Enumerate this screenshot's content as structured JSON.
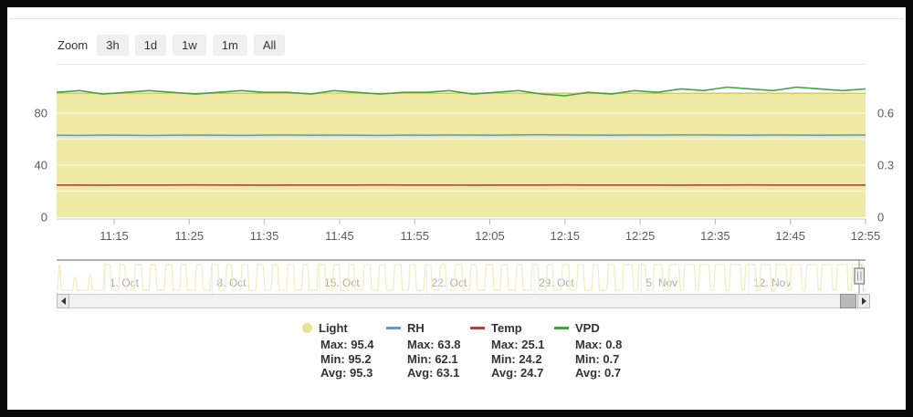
{
  "app": {
    "zoom_label": "Zoom",
    "zoom_buttons": [
      "3h",
      "1d",
      "1w",
      "1m",
      "All"
    ]
  },
  "colors": {
    "light_fill": "#eeeaa6",
    "light_edge": "#d6ca5f",
    "nav_light": "#e4d987",
    "rh": "#6899bb",
    "temp": "#aa4643",
    "vpd": "#44a244",
    "axis_text": "#5c5c5c",
    "grid_over_fill": "rgba(255,255,255,0.55)",
    "axis_line": "#c8c8c8"
  },
  "chart_data": {
    "type": "line",
    "main": {
      "x_tick_labels": [
        "11:15",
        "11:25",
        "11:35",
        "11:45",
        "11:55",
        "12:05",
        "12:15",
        "12:25",
        "12:35",
        "12:45",
        "12:55"
      ],
      "left_axis": {
        "tick_labels": [
          "0",
          "40",
          "80"
        ],
        "tick_values": [
          0,
          40,
          80
        ],
        "range": [
          0,
          118
        ]
      },
      "right_axis": {
        "tick_labels": [
          "0",
          "0.3",
          "0.6"
        ],
        "tick_values": [
          0,
          0.3,
          0.6
        ],
        "range": [
          0,
          0.885
        ]
      },
      "grid_values_left": [
        20,
        40,
        60,
        80
      ],
      "series": [
        {
          "name": "Light",
          "axis": "left",
          "style": "area",
          "values": [
            95.3,
            95.3,
            95.2,
            95.3,
            95.3,
            95.4,
            95.3,
            95.3,
            95.2,
            95.3,
            95.3,
            95.3,
            95.4,
            95.3,
            95.3,
            95.2,
            95.3,
            95.3,
            95.3,
            95.4,
            95.3,
            95.2,
            95.3,
            95.3,
            95.4,
            95.3,
            95.3,
            95.2,
            95.3,
            95.3,
            95.4,
            95.3,
            95.3,
            95.2,
            95.3,
            95.3
          ]
        },
        {
          "name": "RH",
          "axis": "left",
          "style": "line",
          "values": [
            63.0,
            62.9,
            63.1,
            63.0,
            62.8,
            63.0,
            63.1,
            63.0,
            62.9,
            63.1,
            63.2,
            63.0,
            63.1,
            63.0,
            62.9,
            63.1,
            63.0,
            63.2,
            63.1,
            63.0,
            63.3,
            63.4,
            63.2,
            63.1,
            63.0,
            63.2,
            63.1,
            63.3,
            63.2,
            63.1,
            63.0,
            63.2,
            63.1,
            63.0,
            63.1,
            63.2
          ]
        },
        {
          "name": "Temp",
          "axis": "left",
          "style": "line",
          "values": [
            24.7,
            24.7,
            24.6,
            24.7,
            24.7,
            24.7,
            24.8,
            24.7,
            24.7,
            24.6,
            24.7,
            24.7,
            24.7,
            24.7,
            24.8,
            24.7,
            24.7,
            24.7,
            24.6,
            24.7,
            24.7,
            24.7,
            24.8,
            24.7,
            24.7,
            24.7,
            24.7,
            24.6,
            24.7,
            24.7,
            24.8,
            24.7,
            24.7,
            24.7,
            24.7,
            24.7
          ]
        },
        {
          "name": "VPD",
          "axis": "right",
          "style": "line",
          "values": [
            0.72,
            0.73,
            0.71,
            0.72,
            0.73,
            0.72,
            0.71,
            0.72,
            0.73,
            0.72,
            0.72,
            0.71,
            0.73,
            0.72,
            0.71,
            0.72,
            0.72,
            0.73,
            0.71,
            0.72,
            0.73,
            0.71,
            0.7,
            0.72,
            0.71,
            0.73,
            0.72,
            0.74,
            0.73,
            0.75,
            0.74,
            0.73,
            0.75,
            0.74,
            0.73,
            0.74
          ]
        }
      ]
    },
    "navigator": {
      "series_name": "Light",
      "date_labels": [
        "1. Oct",
        "8. Oct",
        "15. Oct",
        "22. Oct",
        "29. Oct",
        "5. Nov",
        "12. Nov"
      ],
      "days": 53,
      "light_high": 95,
      "light_low": 0,
      "day_duty": [
        0.25,
        0.3,
        0.28,
        0.55,
        0.5,
        0.6,
        0.52,
        0.58,
        0.5,
        0.55,
        0.6,
        0.5,
        0.55,
        0.58,
        0.52,
        0.56,
        0.5,
        0.6,
        0.55,
        0.5,
        0.58,
        0.54,
        0.6,
        0.52,
        0.55,
        0.5,
        0.57,
        0.53,
        0.6,
        0.55,
        0.5,
        0.56,
        0.52,
        0.58,
        0.54,
        0.5,
        0.57,
        0.74,
        0.6,
        0.68,
        0.8,
        0.82,
        0.78,
        0.8,
        0.84,
        0.8,
        0.78,
        0.82,
        0.8,
        0.84,
        0.8,
        0.82,
        0.8
      ],
      "day_peak": [
        0.95,
        0.5,
        0.6,
        1,
        1,
        1,
        1,
        1,
        1,
        1,
        1,
        1,
        1,
        1,
        1,
        1,
        1,
        1,
        1,
        1,
        1,
        1,
        1,
        1,
        1,
        1,
        1,
        1,
        1,
        1,
        1,
        1,
        1,
        1,
        1,
        1,
        1,
        1,
        1,
        1,
        1,
        1,
        1,
        1,
        1,
        1,
        1,
        1,
        1,
        1,
        1,
        1,
        1
      ]
    }
  },
  "legend": {
    "items": [
      {
        "label": "Light",
        "marker": "circle",
        "color": "#e9e293",
        "max_text": "Max: 95.4",
        "min_text": "Min: 95.2",
        "avg_text": "Avg: 95.3"
      },
      {
        "label": "RH",
        "marker": "line",
        "color": "#6899bb",
        "max_text": "Max: 63.8",
        "min_text": "Min: 62.1",
        "avg_text": "Avg: 63.1"
      },
      {
        "label": "Temp",
        "marker": "line",
        "color": "#aa4643",
        "max_text": "Max: 25.1",
        "min_text": "Min: 24.2",
        "avg_text": "Avg: 24.7"
      },
      {
        "label": "VPD",
        "marker": "line",
        "color": "#44a244",
        "max_text": "Max: 0.8",
        "min_text": "Min: 0.7",
        "avg_text": "Avg: 0.7"
      }
    ]
  }
}
